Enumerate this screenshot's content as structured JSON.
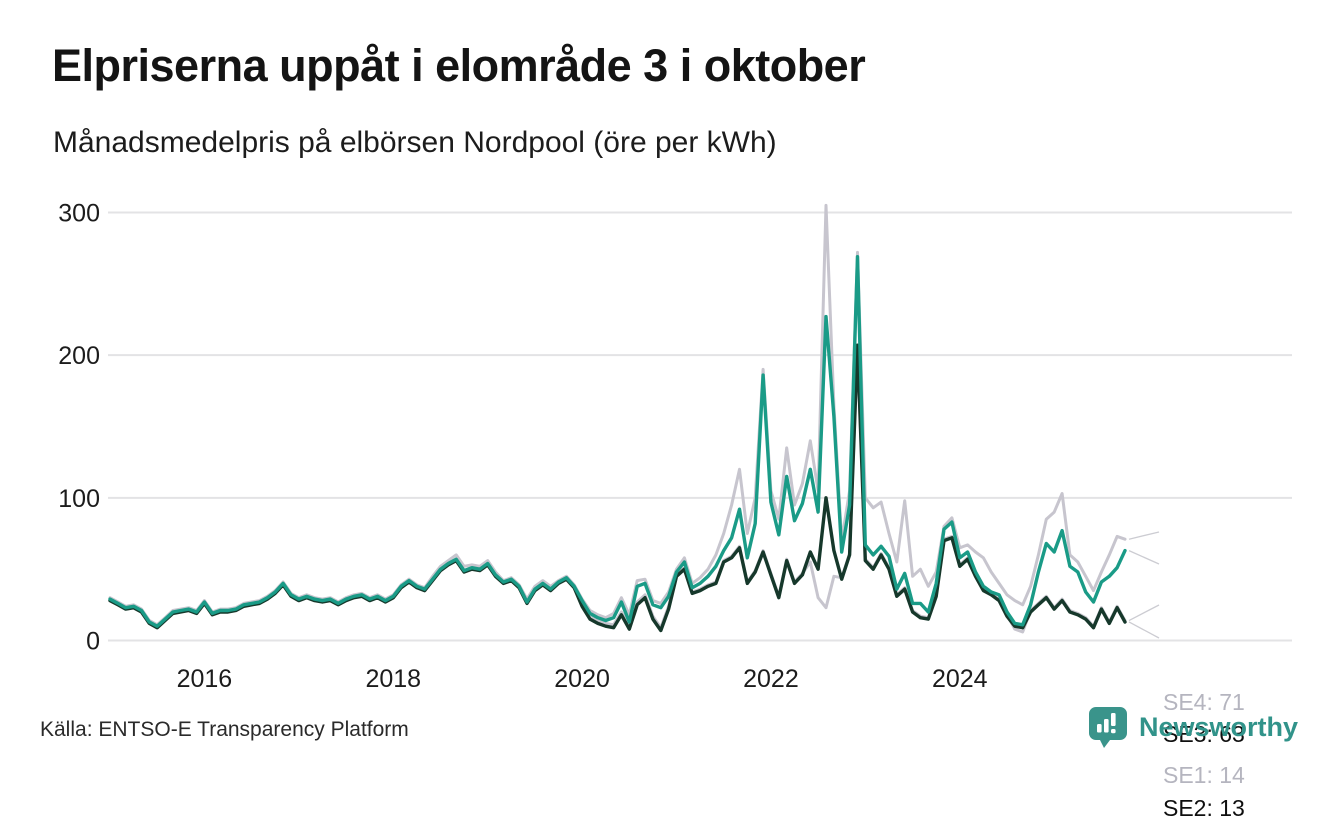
{
  "header": {
    "title": "Elpriserna uppåt i elområde 3 i oktober",
    "subtitle": "Månadsmedelpris på elbörsen Nordpool (öre per kWh)"
  },
  "footer": {
    "source": "Källa: ENTSO-E Transparency Platform",
    "brand": "Newsworthy",
    "brand_color": "#31938a"
  },
  "chart_data": {
    "type": "line",
    "title": "Elpriserna uppåt i elområde 3 i oktober",
    "subtitle": "Månadsmedelpris på elbörsen Nordpool (öre per kWh)",
    "unit": "öre per kWh",
    "x_unit": "month",
    "x_start": "2015-01",
    "x_end": "2025-10",
    "ylim": [
      0,
      310
    ],
    "yticks": [
      0,
      100,
      200,
      300
    ],
    "xticks": [
      {
        "label": "2016",
        "month_index": 12
      },
      {
        "label": "2018",
        "month_index": 36
      },
      {
        "label": "2020",
        "month_index": 60
      },
      {
        "label": "2022",
        "month_index": 84
      },
      {
        "label": "2024",
        "month_index": 108
      }
    ],
    "grid": "horizontal",
    "gridline_color": "#e3e3e5",
    "legend_position": "end-of-line-labels",
    "series": [
      {
        "name": "SE4",
        "color": "#c7c5ce",
        "width": 3,
        "end_label": "SE4: 71",
        "end_label_color": "#b5b5bf",
        "values": [
          30,
          27,
          24,
          25,
          22,
          14,
          11,
          16,
          21,
          22,
          23,
          21,
          28,
          20,
          22,
          22,
          23,
          26,
          27,
          28,
          31,
          35,
          41,
          33,
          30,
          32,
          30,
          29,
          30,
          27,
          30,
          32,
          33,
          30,
          32,
          29,
          32,
          39,
          43,
          39,
          37,
          45,
          52,
          56,
          60,
          52,
          53,
          52,
          56,
          48,
          42,
          44,
          39,
          29,
          38,
          42,
          38,
          42,
          45,
          39,
          29,
          21,
          18,
          16,
          19,
          30,
          18,
          42,
          43,
          28,
          26,
          34,
          50,
          58,
          40,
          44,
          50,
          60,
          75,
          95,
          120,
          75,
          100,
          190,
          105,
          85,
          135,
          95,
          110,
          140,
          105,
          305,
          165,
          70,
          105,
          272,
          100,
          93,
          97,
          75,
          55,
          98,
          45,
          50,
          38,
          48,
          80,
          86,
          65,
          67,
          62,
          58,
          48,
          40,
          32,
          28,
          25,
          38,
          60,
          85,
          90,
          103,
          60,
          55,
          45,
          35,
          48,
          60,
          73,
          71
        ]
      },
      {
        "name": "SE1",
        "color": "#c7c5ce",
        "width": 3,
        "end_label": "SE1: 14",
        "end_label_color": "#b5b5bf",
        "values": [
          29,
          26,
          23,
          24,
          21,
          13,
          10,
          15,
          20,
          21,
          22,
          20,
          27,
          19,
          21,
          21,
          22,
          25,
          26,
          27,
          30,
          34,
          40,
          32,
          29,
          31,
          29,
          28,
          29,
          26,
          29,
          31,
          32,
          29,
          31,
          28,
          31,
          38,
          42,
          38,
          36,
          43,
          50,
          54,
          57,
          49,
          51,
          50,
          54,
          46,
          41,
          43,
          38,
          27,
          36,
          40,
          36,
          41,
          44,
          38,
          26,
          17,
          14,
          12,
          11,
          20,
          10,
          27,
          32,
          17,
          9,
          24,
          46,
          51,
          34,
          36,
          39,
          41,
          56,
          59,
          66,
          41,
          49,
          63,
          47,
          31,
          57,
          41,
          47,
          55,
          30,
          23,
          45,
          44,
          61,
          205,
          57,
          51,
          61,
          51,
          32,
          37,
          21,
          17,
          16,
          32,
          71,
          73,
          53,
          58,
          46,
          36,
          33,
          29,
          18,
          8,
          6,
          21,
          26,
          31,
          23,
          29,
          21,
          19,
          16,
          10,
          23,
          13,
          24,
          14
        ]
      },
      {
        "name": "SE2",
        "color": "#16382b",
        "width": 3.4,
        "end_label": "SE2: 13",
        "end_label_color": "#0f0f0f",
        "values": [
          28,
          25,
          22,
          23,
          20,
          12,
          9,
          14,
          19,
          20,
          21,
          19,
          26,
          18,
          20,
          20,
          21,
          24,
          25,
          26,
          29,
          33,
          39,
          31,
          28,
          30,
          28,
          27,
          28,
          25,
          28,
          30,
          31,
          28,
          30,
          27,
          30,
          37,
          41,
          37,
          35,
          42,
          49,
          53,
          56,
          48,
          50,
          49,
          53,
          45,
          40,
          42,
          37,
          26,
          35,
          39,
          35,
          40,
          43,
          37,
          24,
          15,
          12,
          10,
          9,
          18,
          8,
          25,
          30,
          15,
          7,
          22,
          45,
          50,
          33,
          35,
          38,
          40,
          55,
          58,
          65,
          40,
          48,
          62,
          46,
          30,
          56,
          40,
          46,
          62,
          50,
          100,
          63,
          43,
          60,
          207,
          56,
          50,
          60,
          50,
          31,
          36,
          20,
          16,
          15,
          31,
          70,
          72,
          52,
          57,
          45,
          35,
          32,
          28,
          17,
          10,
          9,
          20,
          25,
          30,
          22,
          28,
          20,
          18,
          15,
          9,
          22,
          12,
          23,
          13
        ]
      },
      {
        "name": "SE3",
        "color": "#1a9b87",
        "width": 3.4,
        "end_label": "SE3: 63",
        "end_label_color": "#0f0f0f",
        "values": [
          29,
          26,
          23,
          24,
          21,
          13,
          10,
          15,
          20,
          21,
          22,
          20,
          27,
          19,
          21,
          21,
          22,
          25,
          26,
          27,
          30,
          34,
          40,
          32,
          29,
          31,
          29,
          28,
          29,
          26,
          29,
          31,
          32,
          29,
          31,
          28,
          31,
          38,
          42,
          38,
          36,
          43,
          50,
          54,
          57,
          49,
          51,
          50,
          54,
          46,
          41,
          43,
          38,
          27,
          36,
          40,
          36,
          41,
          44,
          38,
          28,
          19,
          16,
          14,
          16,
          27,
          13,
          38,
          40,
          25,
          23,
          31,
          48,
          55,
          37,
          40,
          45,
          52,
          63,
          72,
          92,
          58,
          82,
          186,
          97,
          74,
          115,
          84,
          96,
          120,
          90,
          227,
          157,
          62,
          95,
          269,
          67,
          60,
          66,
          59,
          36,
          47,
          26,
          26,
          20,
          40,
          78,
          83,
          58,
          62,
          48,
          38,
          34,
          32,
          20,
          12,
          11,
          25,
          48,
          68,
          62,
          77,
          52,
          48,
          34,
          27,
          41,
          45,
          51,
          63
        ]
      }
    ]
  }
}
